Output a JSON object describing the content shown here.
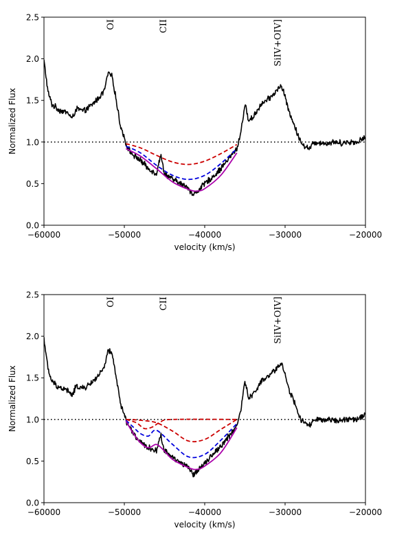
{
  "chart_data": [
    {
      "type": "line",
      "xlabel": "velocity (km/s)",
      "ylabel": "Normalized Flux",
      "xlim": [
        -60000,
        -20000
      ],
      "ylim": [
        0.0,
        2.5
      ],
      "xticks": [
        -60000,
        -50000,
        -40000,
        -30000,
        -20000
      ],
      "xtick_labels": [
        "−60000",
        "−50000",
        "−40000",
        "−30000",
        "−20000"
      ],
      "yticks": [
        0.0,
        0.5,
        1.0,
        1.5,
        2.0,
        2.5
      ],
      "ytick_labels": [
        "0.0",
        "0.5",
        "1.0",
        "1.5",
        "2.0",
        "2.5"
      ],
      "grid": false,
      "annotations": [
        {
          "text": "OI",
          "x": -51800
        },
        {
          "text": "CII",
          "x": -45200
        },
        {
          "text": "SiIV+OIV]",
          "x": -31000
        }
      ],
      "reference_line": {
        "y": 1.0,
        "style": "dotted",
        "color": "#000000"
      },
      "series": [
        {
          "role": "spectrum",
          "color": "#000000",
          "style": "solid",
          "noise": 0.03,
          "x": [
            -60000,
            -59500,
            -59000,
            -58000,
            -57000,
            -56500,
            -56000,
            -55000,
            -54000,
            -53000,
            -52500,
            -52000,
            -51500,
            -51000,
            -50500,
            -50000,
            -49700,
            -49000,
            -48000,
            -47000,
            -46000,
            -45500,
            -45000,
            -44000,
            -43000,
            -42000,
            -41500,
            -41000,
            -40000,
            -39000,
            -38000,
            -37000,
            -36000,
            -35500,
            -35000,
            -34500,
            -34000,
            -33000,
            -32000,
            -31000,
            -30500,
            -30000,
            -29500,
            -29000,
            -28500,
            -28000,
            -27500,
            -27000,
            -26500,
            -26000,
            -25000,
            -24000,
            -23000,
            -22000,
            -21000,
            -20000
          ],
          "y": [
            1.98,
            1.6,
            1.45,
            1.38,
            1.35,
            1.28,
            1.4,
            1.37,
            1.45,
            1.55,
            1.62,
            1.83,
            1.78,
            1.5,
            1.2,
            1.05,
            0.95,
            0.85,
            0.78,
            0.68,
            0.62,
            0.85,
            0.62,
            0.55,
            0.5,
            0.45,
            0.36,
            0.4,
            0.5,
            0.58,
            0.68,
            0.8,
            0.92,
            1.12,
            1.45,
            1.25,
            1.3,
            1.45,
            1.52,
            1.62,
            1.68,
            1.55,
            1.35,
            1.25,
            1.1,
            1.0,
            0.95,
            0.92,
            0.98,
            1.0,
            0.98,
            1.0,
            0.99,
            1.0,
            1.0,
            1.06
          ]
        },
        {
          "role": "fit-component-1",
          "color": "#cc0000",
          "style": "dashed",
          "x": [
            -49800,
            -48000,
            -46000,
            -44000,
            -42000,
            -40000,
            -38000,
            -36000
          ],
          "y": [
            0.98,
            0.93,
            0.84,
            0.76,
            0.73,
            0.77,
            0.86,
            0.97
          ]
        },
        {
          "role": "fit-component-2",
          "color": "#0000dd",
          "style": "dashed",
          "x": [
            -49800,
            -48000,
            -46000,
            -44000,
            -42000,
            -40000,
            -38000,
            -36000
          ],
          "y": [
            0.95,
            0.87,
            0.72,
            0.6,
            0.55,
            0.6,
            0.74,
            0.92
          ]
        },
        {
          "role": "combined-fit",
          "color": "#aa00aa",
          "style": "solid",
          "x": [
            -49800,
            -48000,
            -46000,
            -44000,
            -42000,
            -41000,
            -40000,
            -38000,
            -36000
          ],
          "y": [
            0.92,
            0.83,
            0.68,
            0.52,
            0.43,
            0.41,
            0.44,
            0.6,
            0.87
          ]
        }
      ]
    },
    {
      "type": "line",
      "xlabel": "velocity (km/s)",
      "ylabel": "Normalized Flux",
      "xlim": [
        -60000,
        -20000
      ],
      "ylim": [
        0.0,
        2.5
      ],
      "xticks": [
        -60000,
        -50000,
        -40000,
        -30000,
        -20000
      ],
      "xtick_labels": [
        "−60000",
        "−50000",
        "−40000",
        "−30000",
        "−20000"
      ],
      "yticks": [
        0.0,
        0.5,
        1.0,
        1.5,
        2.0,
        2.5
      ],
      "ytick_labels": [
        "0.0",
        "0.5",
        "1.0",
        "1.5",
        "2.0",
        "2.5"
      ],
      "grid": false,
      "annotations": [
        {
          "text": "OI",
          "x": -51800
        },
        {
          "text": "CII",
          "x": -45200
        },
        {
          "text": "SiIV+OIV]",
          "x": -31000
        }
      ],
      "reference_line": {
        "y": 1.0,
        "style": "dotted",
        "color": "#000000"
      },
      "series": [
        {
          "role": "spectrum",
          "color": "#000000",
          "style": "solid",
          "noise": 0.03,
          "x": [
            -60000,
            -59500,
            -59000,
            -58000,
            -57000,
            -56500,
            -56000,
            -55000,
            -54000,
            -53000,
            -52500,
            -52000,
            -51500,
            -51000,
            -50500,
            -50000,
            -49700,
            -49000,
            -48000,
            -47000,
            -46000,
            -45500,
            -45000,
            -44000,
            -43000,
            -42000,
            -41500,
            -41000,
            -40000,
            -39000,
            -38000,
            -37000,
            -36000,
            -35500,
            -35000,
            -34500,
            -34000,
            -33000,
            -32000,
            -31000,
            -30500,
            -30000,
            -29500,
            -29000,
            -28500,
            -28000,
            -27500,
            -27000,
            -26500,
            -26000,
            -25000,
            -24000,
            -23000,
            -22000,
            -21000,
            -20000
          ],
          "y": [
            1.98,
            1.6,
            1.45,
            1.38,
            1.35,
            1.28,
            1.4,
            1.37,
            1.45,
            1.55,
            1.62,
            1.83,
            1.78,
            1.5,
            1.2,
            1.05,
            0.97,
            0.85,
            0.72,
            0.66,
            0.62,
            0.82,
            0.62,
            0.55,
            0.48,
            0.42,
            0.33,
            0.38,
            0.48,
            0.58,
            0.68,
            0.8,
            0.92,
            1.12,
            1.45,
            1.25,
            1.3,
            1.45,
            1.52,
            1.62,
            1.68,
            1.55,
            1.35,
            1.25,
            1.1,
            1.0,
            0.95,
            0.92,
            0.98,
            1.0,
            0.98,
            1.0,
            0.99,
            1.0,
            1.0,
            1.06
          ]
        },
        {
          "role": "fit-component-1",
          "color": "#cc0000",
          "style": "dashed",
          "x": [
            -49800,
            -48500,
            -47500,
            -46500,
            -45500,
            -44000,
            -36000
          ],
          "y": [
            1.0,
            0.96,
            0.89,
            0.91,
            0.97,
            1.0,
            1.0
          ]
        },
        {
          "role": "fit-component-2",
          "color": "#cc0000",
          "style": "dashed",
          "x": [
            -49800,
            -48000,
            -46000,
            -44000,
            -42000,
            -40000,
            -38000,
            -36000
          ],
          "y": [
            1.0,
            0.99,
            0.96,
            0.86,
            0.74,
            0.76,
            0.88,
            1.0
          ]
        },
        {
          "role": "fit-component-3",
          "color": "#0000dd",
          "style": "dashed",
          "x": [
            -49800,
            -48800,
            -48000,
            -47000,
            -46000,
            -44000,
            -42000,
            -40000,
            -38000,
            -36000
          ],
          "y": [
            0.99,
            0.9,
            0.83,
            0.8,
            0.87,
            0.7,
            0.55,
            0.58,
            0.75,
            0.95
          ]
        },
        {
          "role": "combined-fit",
          "color": "#aa00aa",
          "style": "solid",
          "x": [
            -49800,
            -49000,
            -48000,
            -47000,
            -46000,
            -45000,
            -44000,
            -42000,
            -41000,
            -40000,
            -38000,
            -36000
          ],
          "y": [
            0.98,
            0.85,
            0.72,
            0.66,
            0.7,
            0.62,
            0.52,
            0.42,
            0.4,
            0.44,
            0.6,
            0.9
          ]
        }
      ]
    }
  ]
}
